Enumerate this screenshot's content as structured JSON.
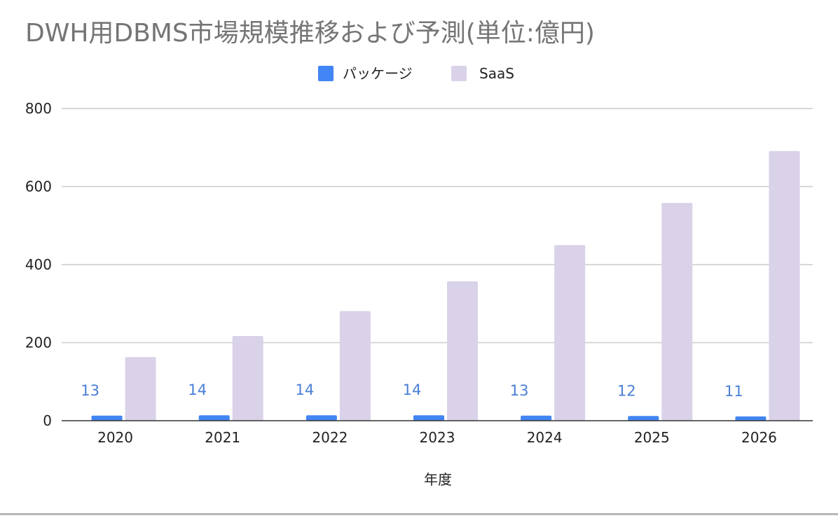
{
  "chart_data": {
    "type": "bar",
    "title": "DWH用DBMS市場規模推移および予測(単位:億円)",
    "xlabel": "年度",
    "ylabel": "",
    "categories": [
      "2020",
      "2021",
      "2022",
      "2023",
      "2024",
      "2025",
      "2026"
    ],
    "series": [
      {
        "name": "パッケージ",
        "values": [
          13,
          14,
          14,
          14,
          13,
          12,
          11
        ],
        "color": "#4285f4",
        "data_labels": true
      },
      {
        "name": "SaaS",
        "values": [
          163,
          217,
          281,
          357,
          450,
          558,
          691
        ],
        "color": "#d9d2e9",
        "data_labels": false
      }
    ],
    "ylim": [
      0,
      800
    ],
    "yticks": [
      "0",
      "200",
      "400",
      "600",
      "800"
    ],
    "grid": true,
    "legend_position": "top-center"
  },
  "colors": {
    "title": "#757575",
    "text": "#222222",
    "grid": "#cccccc",
    "axis": "#333333",
    "data_label": "#4a7fd6"
  }
}
